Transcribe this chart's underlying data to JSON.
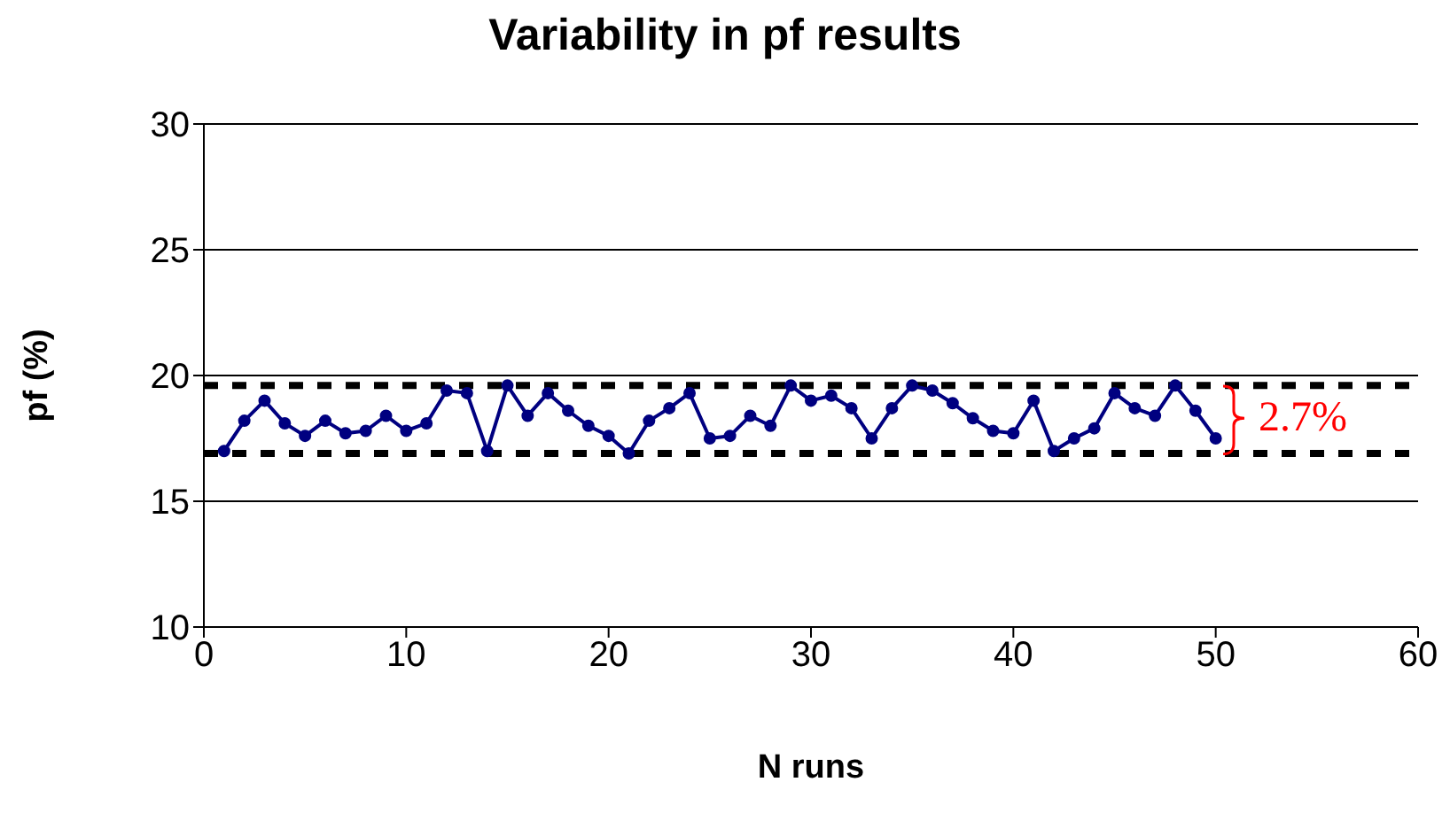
{
  "chart_data": {
    "type": "line",
    "title": "Variability in pf results",
    "xlabel": "N runs",
    "ylabel": "pf (%)",
    "x": [
      1,
      2,
      3,
      4,
      5,
      6,
      7,
      8,
      9,
      10,
      11,
      12,
      13,
      14,
      15,
      16,
      17,
      18,
      19,
      20,
      21,
      22,
      23,
      24,
      25,
      26,
      27,
      28,
      29,
      30,
      31,
      32,
      33,
      34,
      35,
      36,
      37,
      38,
      39,
      40,
      41,
      42,
      43,
      44,
      45,
      46,
      47,
      48,
      49,
      50
    ],
    "series": [
      {
        "color": "#000080",
        "values": [
          17.0,
          18.2,
          19.0,
          18.1,
          17.6,
          18.2,
          17.7,
          17.8,
          18.4,
          17.8,
          18.1,
          19.4,
          19.3,
          17.0,
          19.6,
          18.4,
          19.3,
          18.6,
          18.0,
          17.6,
          16.9,
          18.2,
          18.7,
          19.3,
          17.5,
          17.6,
          18.4,
          18.0,
          19.6,
          19.0,
          19.2,
          18.7,
          17.5,
          18.7,
          19.6,
          19.4,
          18.9,
          18.3,
          17.8,
          17.7,
          19.0,
          17.0,
          17.5,
          17.9,
          19.3,
          18.7,
          18.4,
          19.6,
          18.6,
          17.5
        ]
      }
    ],
    "xlim": [
      0,
      60
    ],
    "xticks": [
      0,
      10,
      20,
      30,
      40,
      50,
      60
    ],
    "ylim": [
      10,
      30
    ],
    "yticks": [
      10,
      15,
      20,
      25,
      30
    ],
    "grid": "y",
    "marker": "circle",
    "line_style": "solid",
    "ref_lines": [
      {
        "axis": "y",
        "value": 19.6,
        "color": "#000000",
        "line_style": "dashed"
      },
      {
        "axis": "y",
        "value": 16.9,
        "color": "#000000",
        "line_style": "dashed"
      }
    ],
    "annotations": [
      "2.7%"
    ]
  }
}
